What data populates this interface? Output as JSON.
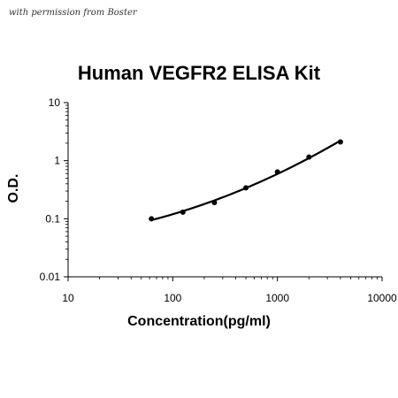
{
  "watermark": "with permission from Boster",
  "chart_data": {
    "type": "scatter",
    "title": "Human VEGFR2 ELISA Kit",
    "xlabel": "Concentration(pg/ml)",
    "ylabel": "O.D.",
    "xscale": "log",
    "yscale": "log",
    "xlim": [
      10,
      10000
    ],
    "ylim": [
      0.01,
      10
    ],
    "xticks": [
      "10",
      "100",
      "1000",
      "10000"
    ],
    "yticks": [
      "10",
      "1",
      "0.1",
      "0.01"
    ],
    "grid": false,
    "legend": "none",
    "series": [
      {
        "x": [
          62.5,
          125,
          250,
          500,
          1000,
          2000,
          4000
        ],
        "y": [
          0.1,
          0.13,
          0.19,
          0.34,
          0.64,
          1.15,
          2.1
        ]
      }
    ],
    "fit_curve": "smooth",
    "colors": {
      "markers": "#000000",
      "curve": "#000000",
      "axes": "#000000"
    }
  }
}
